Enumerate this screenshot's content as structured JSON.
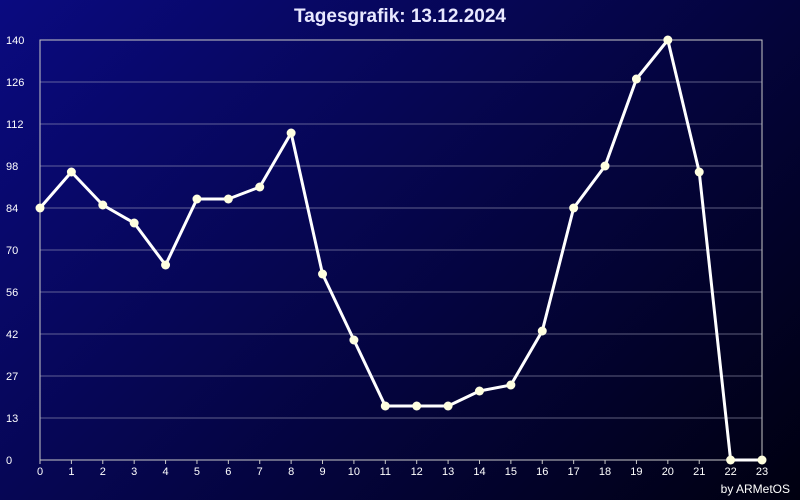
{
  "chart_data": {
    "type": "line",
    "title": "Tagesgrafik: 13.12.2024",
    "x": [
      0,
      1,
      2,
      3,
      4,
      5,
      6,
      7,
      8,
      9,
      10,
      11,
      12,
      13,
      14,
      15,
      16,
      17,
      18,
      19,
      20,
      21,
      22,
      23
    ],
    "series": [
      {
        "values": [
          84,
          96,
          85,
          79,
          65,
          87,
          87,
          91,
          109,
          62,
          40,
          18,
          18,
          18,
          23,
          25,
          43,
          84,
          98,
          127,
          140,
          96,
          0,
          0
        ]
      }
    ],
    "y_ticks": [
      "0",
      "13",
      "27",
      "42",
      "56",
      "70",
      "84",
      "98",
      "112",
      "126",
      "140"
    ],
    "xlim": [
      0,
      23
    ],
    "ylim": [
      0,
      140
    ],
    "grid": true,
    "line_color": "#ffffff",
    "marker_color": "#ffffe0"
  },
  "footer": {
    "credit": "by ARMetOS"
  }
}
